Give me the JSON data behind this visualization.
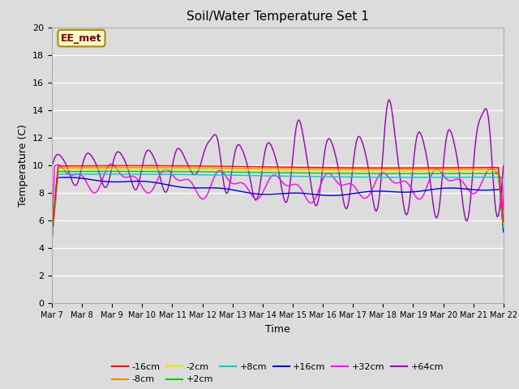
{
  "title": "Soil/Water Temperature Set 1",
  "xlabel": "Time",
  "ylabel": "Temperature (C)",
  "ylim": [
    0,
    20
  ],
  "background_color": "#dcdcdc",
  "plot_bg_color": "#dcdcdc",
  "annotation_text": "EE_met",
  "annotation_bg": "#ffffcc",
  "annotation_border": "#aa8800",
  "x_tick_labels": [
    "Mar 7",
    "Mar 8",
    "Mar 9",
    "Mar 10",
    "Mar 11",
    "Mar 12",
    "Mar 13",
    "Mar 14",
    "Mar 15",
    "Mar 16",
    "Mar 17",
    "Mar 18",
    "Mar 19",
    "Mar 20",
    "Mar 21",
    "Mar 22"
  ],
  "series": [
    {
      "label": "-16cm",
      "color": "#ff0000"
    },
    {
      "label": "-8cm",
      "color": "#ff8800"
    },
    {
      "label": "-2cm",
      "color": "#e8e800"
    },
    {
      "label": "+2cm",
      "color": "#00cc00"
    },
    {
      "label": "+8cm",
      "color": "#00cccc"
    },
    {
      "label": "+16cm",
      "color": "#0000cc"
    },
    {
      "label": "+32cm",
      "color": "#ff00ff"
    },
    {
      "label": "+64cm",
      "color": "#9900bb"
    }
  ]
}
